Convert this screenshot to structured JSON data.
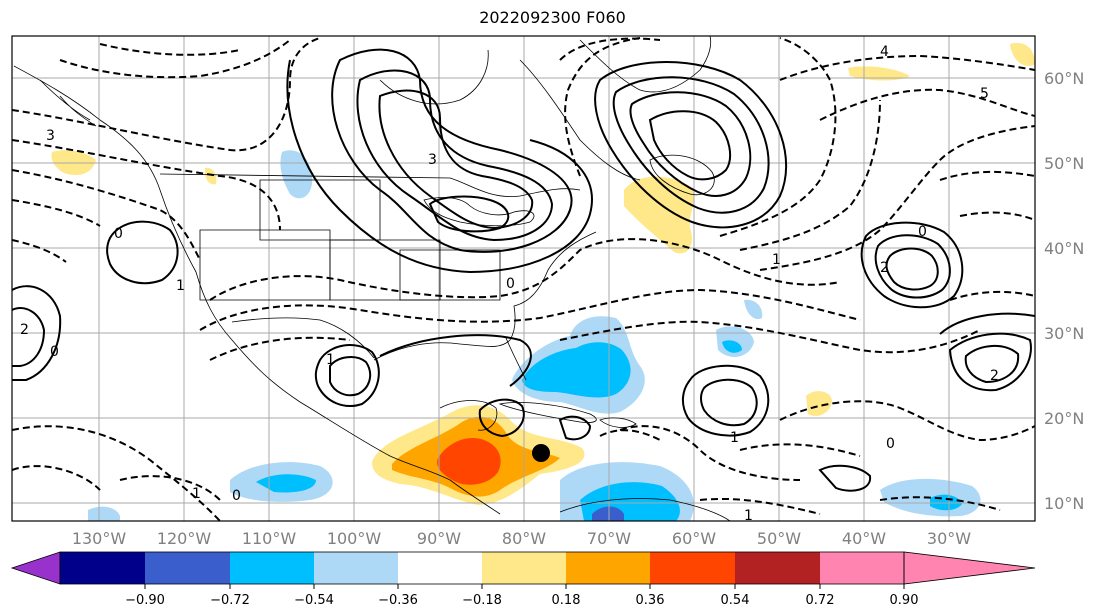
{
  "title": "2022092300 F060",
  "map": {
    "lat_labels": [
      "60°N",
      "50°N",
      "40°N",
      "30°N",
      "20°N",
      "10°N"
    ],
    "lon_labels": [
      "130°W",
      "120°W",
      "110°W",
      "100°W",
      "90°W",
      "80°W",
      "70°W",
      "60°W",
      "50°W",
      "40°W",
      "30°W"
    ],
    "gridlines": true,
    "marker": "storm-position-dot",
    "contour_labels": [
      "3",
      "3",
      "4",
      "5",
      "2",
      "2",
      "2",
      "0",
      "0",
      "1",
      "1",
      "1",
      "0",
      "0",
      "1",
      "0",
      "0",
      "1",
      "1"
    ]
  },
  "colorbar": {
    "ticks": [
      "−0.90",
      "−0.72",
      "−0.54",
      "−0.36",
      "−0.18",
      "0.18",
      "0.36",
      "0.54",
      "0.72",
      "0.90"
    ],
    "colors": [
      "#9932cc",
      "#00008b",
      "#3a5fcd",
      "#00bfff",
      "#add8f6",
      "#ffffff",
      "#ffe88a",
      "#ffa500",
      "#ff4500",
      "#b22222",
      "#ff85b0"
    ],
    "extend": "both"
  }
}
